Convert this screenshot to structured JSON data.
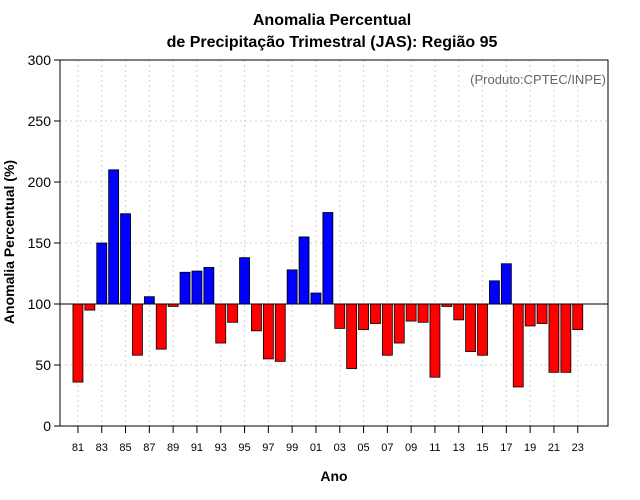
{
  "chart_data": {
    "type": "bar",
    "title": [
      "Anomalia Percentual",
      "de Precipitação Trimestral (JAS): Região 95"
    ],
    "xlabel": "Ano",
    "ylabel": "Anomalia Percentual (%)",
    "source": "(Produto:CPTEC/INPE)",
    "baseline": 100,
    "ylim": [
      0,
      300
    ],
    "yticks": [
      0,
      50,
      100,
      150,
      200,
      250,
      300
    ],
    "grid": true,
    "categories": [
      "81",
      "82",
      "83",
      "84",
      "85",
      "86",
      "87",
      "88",
      "89",
      "90",
      "91",
      "92",
      "93",
      "94",
      "95",
      "96",
      "97",
      "98",
      "99",
      "00",
      "01",
      "02",
      "03",
      "04",
      "05",
      "06",
      "07",
      "08",
      "09",
      "10",
      "11",
      "12",
      "13",
      "14",
      "15",
      "16",
      "17",
      "18",
      "19",
      "20",
      "21",
      "22",
      "23"
    ],
    "xtick_labels": [
      "81",
      "83",
      "85",
      "87",
      "89",
      "91",
      "93",
      "95",
      "97",
      "99",
      "01",
      "03",
      "05",
      "07",
      "09",
      "11",
      "13",
      "15",
      "17",
      "19",
      "21",
      "23"
    ],
    "values": [
      36,
      95,
      150,
      210,
      174,
      58,
      106,
      63,
      98,
      126,
      127,
      130,
      68,
      85,
      138,
      78,
      55,
      53,
      128,
      155,
      109,
      175,
      80,
      47,
      79,
      84,
      58,
      68,
      86,
      85,
      40,
      98,
      87,
      61,
      58,
      119,
      133,
      32,
      82,
      84,
      44,
      44,
      79
    ],
    "colors": {
      "above": "#0000ff",
      "below": "#ff0000",
      "grid": "#d3d3d3",
      "source": "#666666"
    }
  }
}
